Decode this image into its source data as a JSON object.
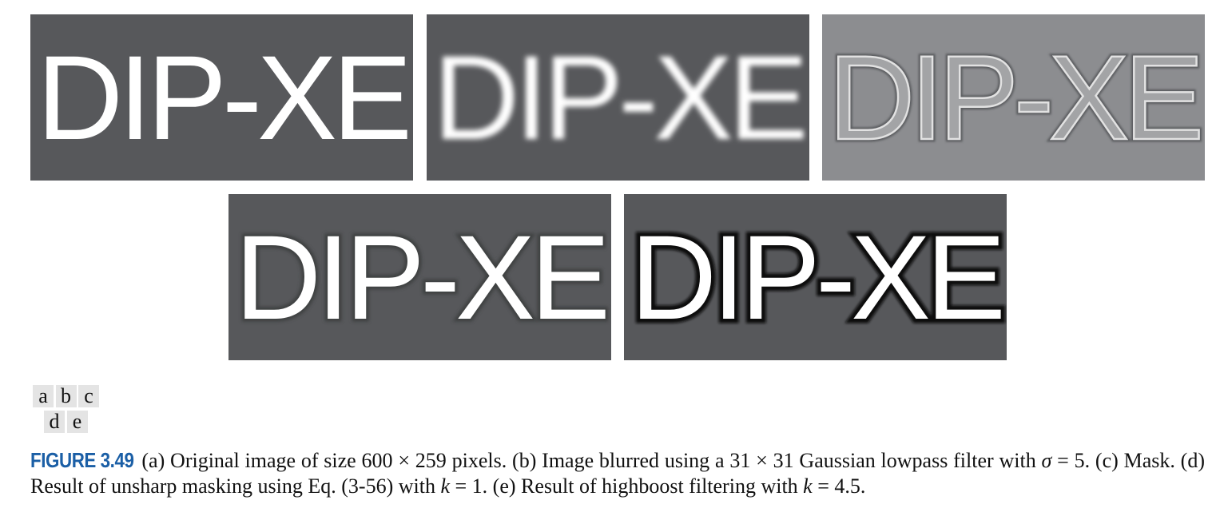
{
  "panels": [
    {
      "id": "a",
      "text": "DIP-XE",
      "style": "original",
      "bg": "#57585b",
      "fg": "#ffffff"
    },
    {
      "id": "b",
      "text": "DIP-XE",
      "style": "blurred",
      "bg": "#57585b",
      "fg": "#ffffff"
    },
    {
      "id": "c",
      "text": "DIP-XE",
      "style": "mask",
      "bg": "#8c8d90",
      "fg": "#d9d9d9"
    },
    {
      "id": "d",
      "text": "DIP-XE",
      "style": "unsharp",
      "bg": "#57585b",
      "fg": "#ffffff"
    },
    {
      "id": "e",
      "text": "DIP-XE",
      "style": "highboost",
      "bg": "#57585b",
      "fg": "#ffffff"
    }
  ],
  "layout_key": {
    "row1": [
      "a",
      "b",
      "c"
    ],
    "row2": [
      "d",
      "e"
    ]
  },
  "caption": {
    "figure_label": "FIGURE 3.49",
    "parts": [
      " (a) Original image of size 600 × 259 pixels. (b) Image blurred using a 31 × 31 Gaussian lowpass filter with ",
      "σ",
      " = 5. (c) Mask. (d) Result of unsharp masking using Eq. (3-56) with ",
      "k",
      " = 1. (e) Result of highboost filtering with ",
      "k",
      " = 4.5."
    ]
  },
  "colors": {
    "caption_label": "#1b5fa6"
  }
}
